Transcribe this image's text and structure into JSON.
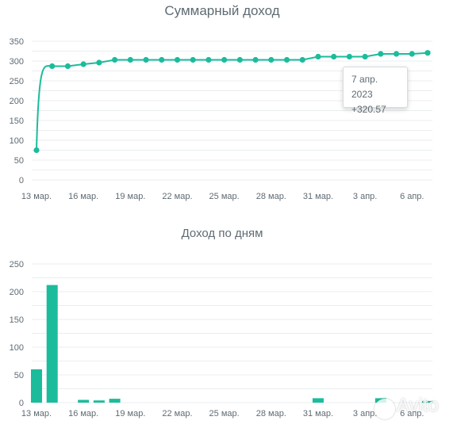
{
  "chart_data": [
    {
      "type": "line",
      "title": "Суммарный доход",
      "ylim": [
        0,
        350
      ],
      "yticks": [
        "0",
        "25",
        "50",
        "75",
        "100",
        "125",
        "150",
        "175",
        "200",
        "225",
        "250",
        "275",
        "300",
        "325",
        "350"
      ],
      "ytick_labels": [
        "0",
        "50",
        "100",
        "150",
        "200",
        "250",
        "300",
        "350"
      ],
      "x": [
        "13 мар.",
        "14 мар.",
        "15 мар.",
        "16 мар.",
        "17 мар.",
        "18 мар.",
        "19 мар.",
        "20 мар.",
        "21 мар.",
        "22 мар.",
        "23 мар.",
        "24 мар.",
        "25 мар.",
        "26 мар.",
        "27 мар.",
        "28 мар.",
        "29 мар.",
        "30 мар.",
        "31 мар.",
        "1 апр.",
        "2 апр.",
        "3 апр.",
        "4 апр.",
        "5 апр.",
        "6 апр.",
        "7 апр."
      ],
      "xtick_labels": [
        "13 мар.",
        "16 мар.",
        "19 мар.",
        "22 мар.",
        "25 мар.",
        "28 мар.",
        "31 мар.",
        "3 апр.",
        "6 апр."
      ],
      "series": [
        {
          "values": [
            75,
            287,
            287,
            292,
            296,
            303,
            303,
            303,
            303,
            303,
            303,
            303,
            303,
            303,
            303,
            303,
            303,
            303,
            311,
            311,
            311,
            311,
            318,
            318,
            318,
            320.57
          ]
        }
      ],
      "color": "#1bbc9b",
      "grid": true,
      "tooltip": {
        "date": "7 апр. 2023",
        "value": "+320.57"
      }
    },
    {
      "type": "bar",
      "title": "Доход по дням",
      "ylim": [
        0,
        250
      ],
      "ytick_labels": [
        "0",
        "50",
        "100",
        "150",
        "200",
        "250"
      ],
      "x": [
        "13 мар.",
        "14 мар.",
        "15 мар.",
        "16 мар.",
        "17 мар.",
        "18 мар.",
        "19 мар.",
        "20 мар.",
        "21 мар.",
        "22 мар.",
        "23 мар.",
        "24 мар.",
        "25 мар.",
        "26 мар.",
        "27 мар.",
        "28 мар.",
        "29 мар.",
        "30 мар.",
        "31 мар.",
        "1 апр.",
        "2 апр.",
        "3 апр.",
        "4 апр.",
        "5 апр.",
        "6 апр.",
        "7 апр."
      ],
      "xtick_labels": [
        "13 мар.",
        "16 мар.",
        "19 мар.",
        "22 мар.",
        "25 мар.",
        "28 мар.",
        "31 мар.",
        "3 апр.",
        "6 апр."
      ],
      "values": [
        60,
        212,
        0,
        5,
        4,
        7,
        0,
        0,
        0,
        0,
        0,
        0,
        0,
        0,
        0,
        0,
        0,
        0,
        8,
        0,
        0,
        0,
        8,
        0,
        0,
        3
      ],
      "color": "#1bbc9b",
      "grid": true
    }
  ],
  "watermark": "Avito"
}
